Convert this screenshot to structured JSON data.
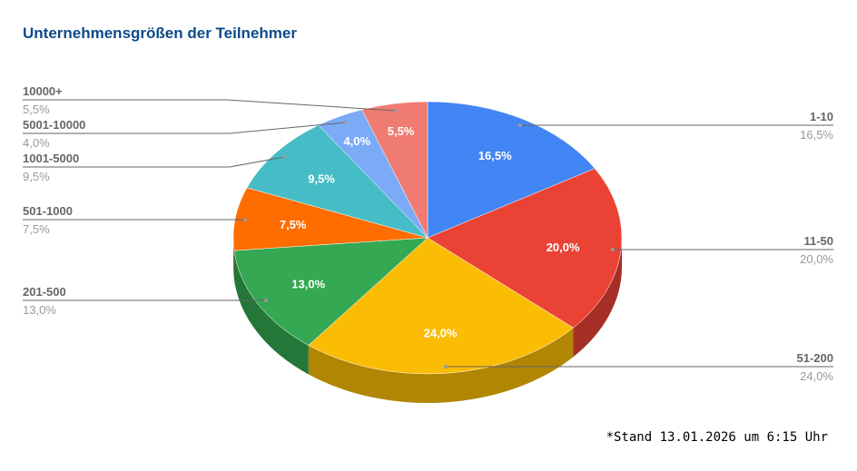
{
  "chart_data": {
    "type": "pie",
    "style": "3d",
    "title": "Unternehmensgrößen der Teilnehmer",
    "start": "top",
    "direction": "clockwise",
    "slices": [
      {
        "label": "1-10",
        "value": 16.5,
        "display": "16,5%",
        "color": "#4285f4",
        "side_color": "#2f5fad"
      },
      {
        "label": "11-50",
        "value": 20.0,
        "display": "20,0%",
        "color": "#ea4335",
        "side_color": "#a52f26"
      },
      {
        "label": "51-200",
        "value": 24.0,
        "display": "24,0%",
        "color": "#fbbc04",
        "side_color": "#b08603"
      },
      {
        "label": "201-500",
        "value": 13.0,
        "display": "13,0%",
        "color": "#34a853",
        "side_color": "#257639"
      },
      {
        "label": "501-1000",
        "value": 7.5,
        "display": "7,5%",
        "color": "#ff6d01",
        "side_color": "#b34d01"
      },
      {
        "label": "1001-5000",
        "value": 9.5,
        "display": "9,5%",
        "color": "#46bdc6",
        "side_color": "#31858b"
      },
      {
        "label": "5001-10000",
        "value": 4.0,
        "display": "4,0%",
        "color": "#7baaf7",
        "side_color": "#5677ad"
      },
      {
        "label": "10000+",
        "value": 5.5,
        "display": "5,5%",
        "color": "#f07b72",
        "side_color": "#a85650"
      }
    ],
    "label_color": "#666666",
    "value_color": "#999999"
  },
  "footnote": "*Stand 13.01.2026 um 6:15 Uhr"
}
